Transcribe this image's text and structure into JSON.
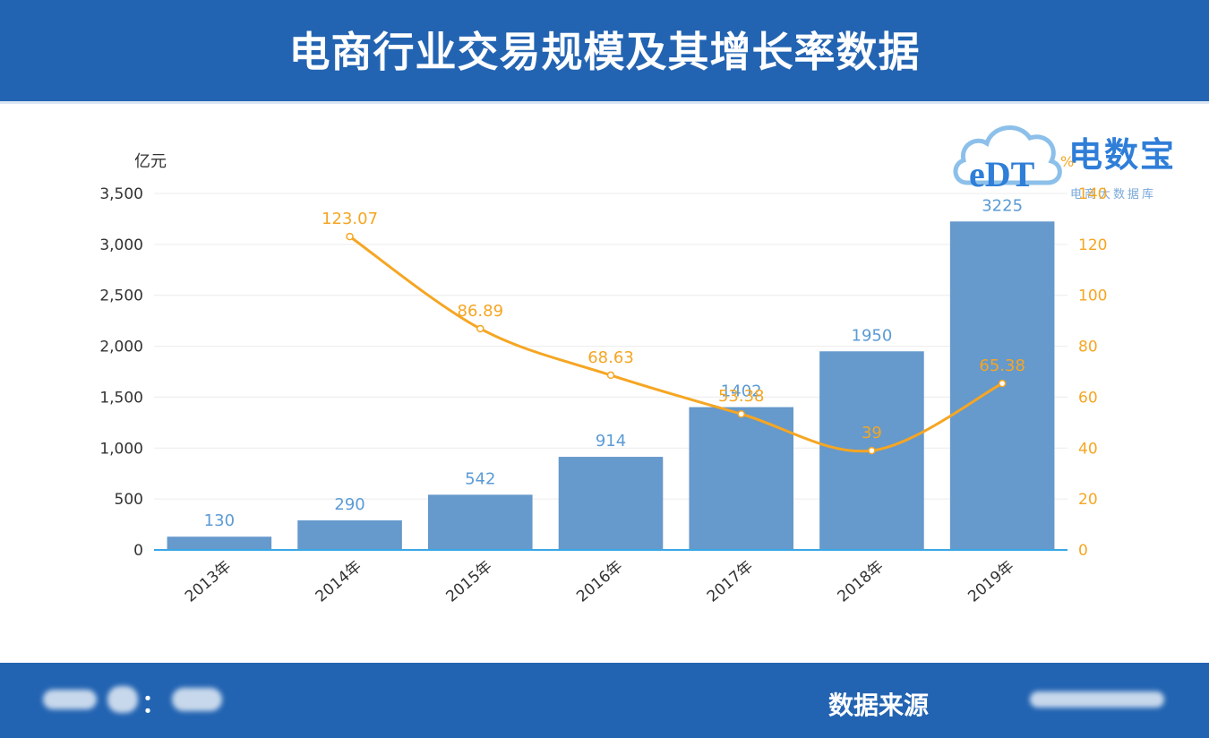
{
  "header": {
    "title": "电商行业交易规模及其增长率数据"
  },
  "footer": {
    "left_label": "：",
    "source_label": "数据来源"
  },
  "logo": {
    "brand_cn": "电数宝",
    "brand_sub": "电商大数据库",
    "brand_en": "eDT"
  },
  "chart_data": {
    "type": "bar",
    "categories": [
      "2013年",
      "2014年",
      "2015年",
      "2016年",
      "2017年",
      "2018年",
      "2019年"
    ],
    "series": [
      {
        "type": "bar",
        "axis": "left",
        "color": "#6699cc",
        "values": [
          130,
          290,
          542,
          914,
          1402,
          1950,
          3225
        ],
        "labels": [
          "130",
          "290",
          "542",
          "914",
          "1402",
          "1950",
          "3225"
        ]
      },
      {
        "type": "line",
        "axis": "right",
        "color": "#f5a623",
        "values": [
          null,
          123.07,
          86.89,
          68.63,
          53.38,
          39,
          65.38
        ],
        "labels": [
          "",
          "123.07",
          "86.89",
          "68.63",
          "53.38",
          "39",
          "65.38"
        ]
      }
    ],
    "y_left": {
      "unit": "亿元",
      "min": 0,
      "max": 3500,
      "ticks": [
        "0",
        "500",
        "1,000",
        "1,500",
        "2,000",
        "2,500",
        "3,000",
        "3,500"
      ]
    },
    "y_right": {
      "unit": "%",
      "min": 0,
      "max": 140,
      "ticks": [
        "0",
        "20",
        "40",
        "60",
        "80",
        "100",
        "120",
        "140"
      ]
    },
    "grid": true,
    "legend": "none"
  }
}
